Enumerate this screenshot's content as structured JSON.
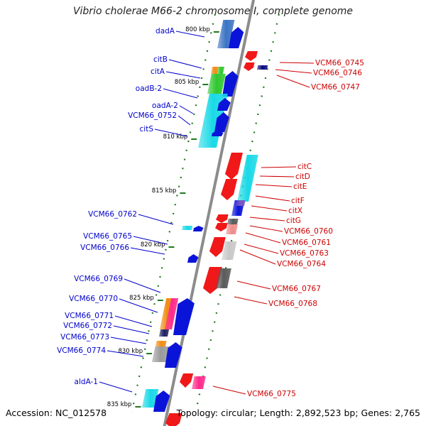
{
  "title": "Vibrio cholerae M66-2 chromosome I, complete genome",
  "footer": {
    "accession": "Accession: NC_012578",
    "topology": "Topology: circular; Length: 2,892,523 bp; Genes: 2,765"
  },
  "colors": {
    "left_label": "#0000cc",
    "right_label": "#cc0000",
    "backbone": "#8c8c8c",
    "tick": "#1f7a1f"
  },
  "ticks": [
    "800 kbp",
    "805 kbp",
    "810 kbp",
    "815 kbp",
    "820 kbp",
    "825 kbp",
    "830 kbp",
    "835 kbp"
  ],
  "left_labels": [
    "dadA",
    "citB",
    "citA",
    "oadB-2",
    "oadA-2",
    "VCM66_0752",
    "citS",
    "VCM66_0762",
    "VCM66_0765",
    "VCM66_0766",
    "VCM66_0769",
    "VCM66_0770",
    "VCM66_0771",
    "VCM66_0772",
    "VCM66_0773",
    "VCM66_0774",
    "aldA-1"
  ],
  "right_labels": [
    "VCM66_0745",
    "VCM66_0746",
    "VCM66_0747",
    "citC",
    "citD",
    "citE",
    "citF",
    "citX",
    "citG",
    "VCM66_0760",
    "VCM66_0761",
    "VCM66_0763",
    "VCM66_0764",
    "VCM66_0767",
    "VCM66_0768",
    "VCM66_0775"
  ]
}
